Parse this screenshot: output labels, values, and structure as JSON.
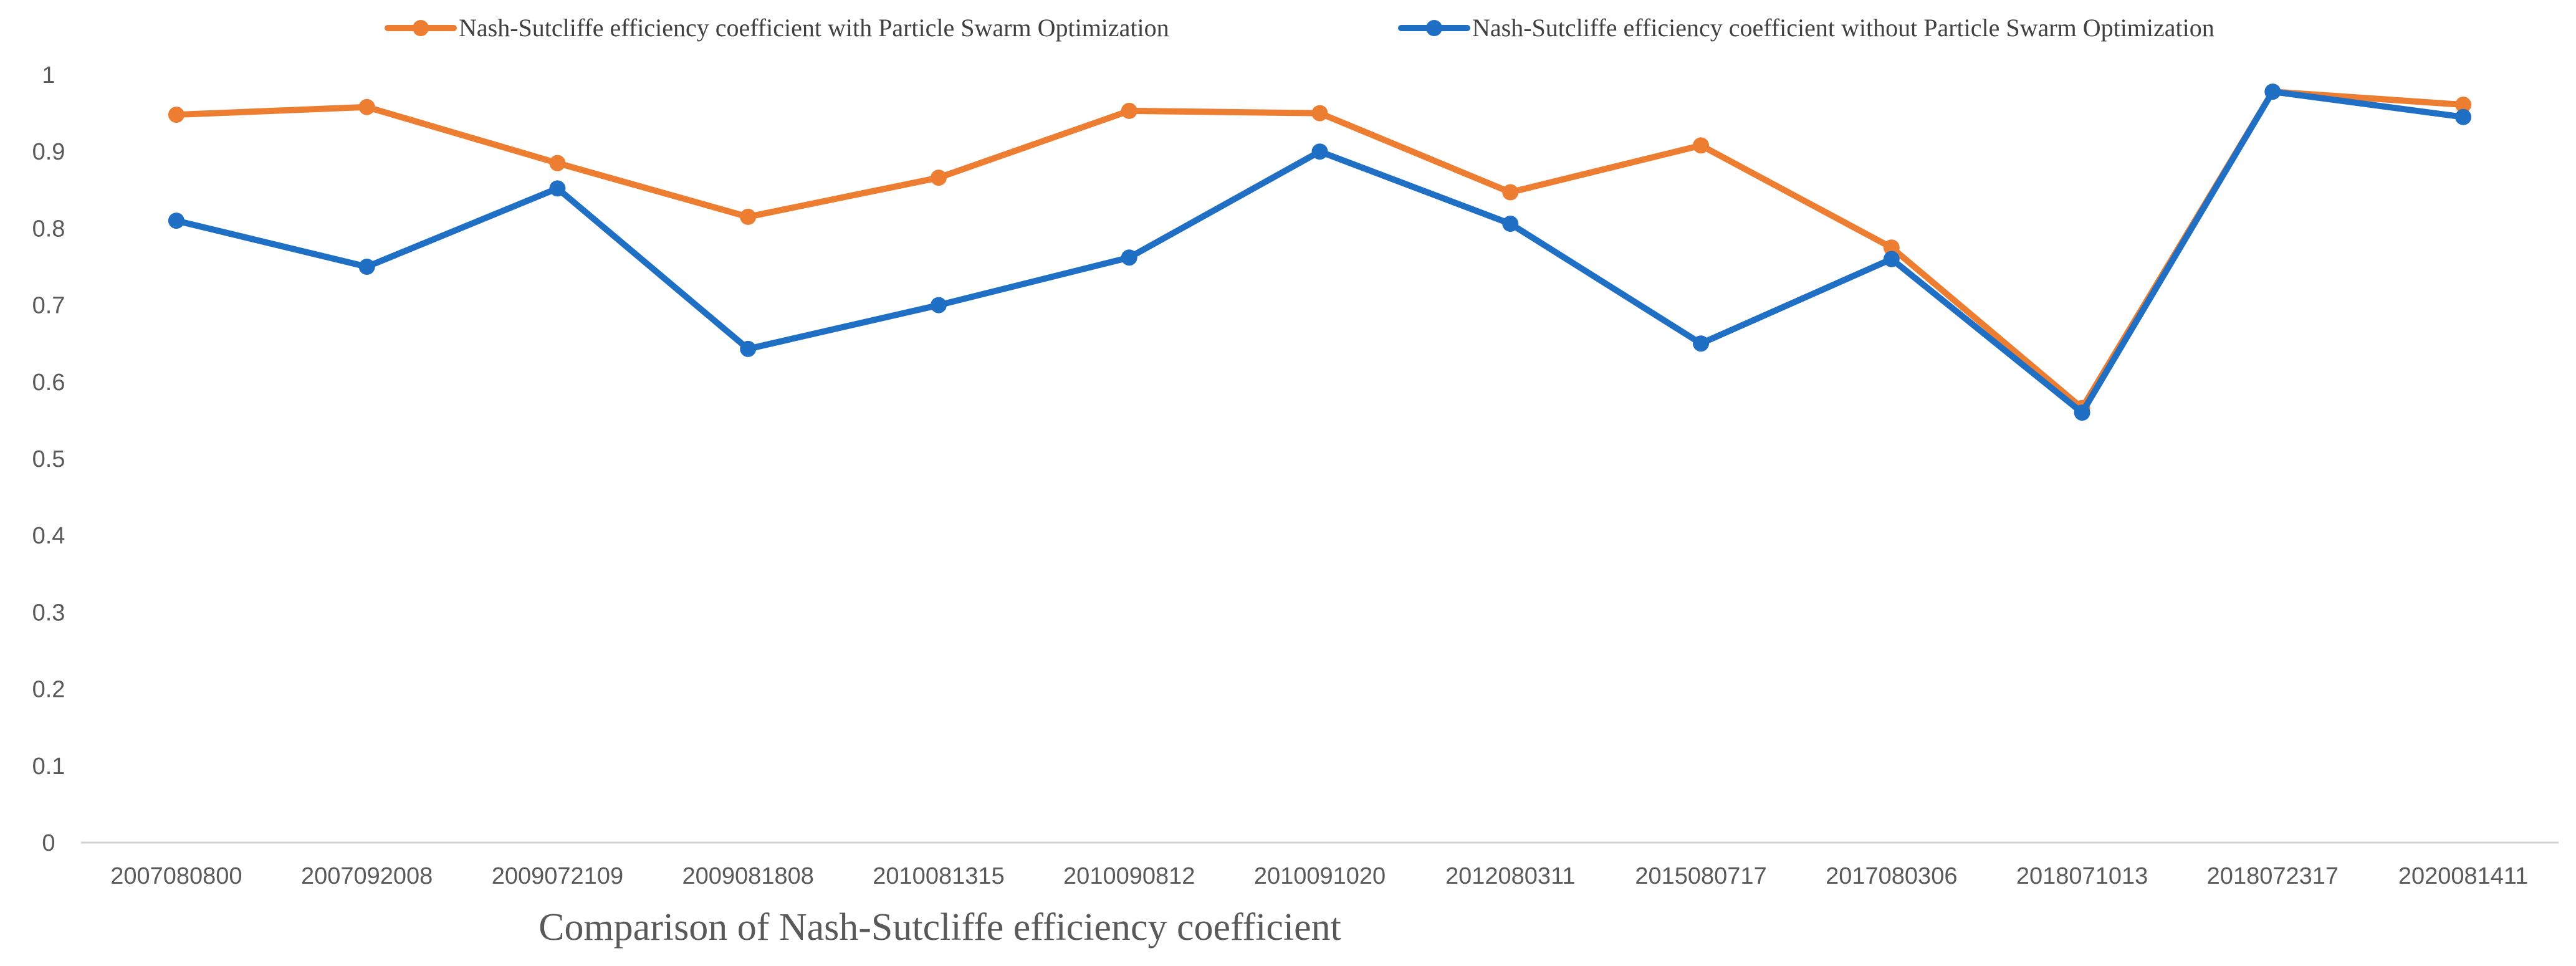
{
  "chart_data": {
    "type": "line",
    "title": "Comparison of Nash-Sutcliffe efficiency coefficient",
    "xlabel": "Comparison of Nash-Sutcliffe efficiency coefficient",
    "ylabel": "",
    "ylim": [
      0,
      1
    ],
    "yticks": [
      "0",
      "0.1",
      "0.2",
      "0.3",
      "0.4",
      "0.5",
      "0.6",
      "0.7",
      "0.8",
      "0.9",
      "1"
    ],
    "grid": false,
    "legend_position": "top-center",
    "categories": [
      "2007080800",
      "2007092008",
      "2009072109",
      "2009081808",
      "2010081315",
      "2010090812",
      "2010091020",
      "2012080311",
      "2015080717",
      "2017080306",
      "2018071013",
      "2018072317",
      "2020081411"
    ],
    "series": [
      {
        "name": "Nash-Sutcliffe efficiency coefficient with Particle Swarm Optimization",
        "color": "#ED7D31",
        "values": [
          0.948,
          0.958,
          0.885,
          0.815,
          0.866,
          0.953,
          0.95,
          0.847,
          0.908,
          0.775,
          0.566,
          0.978,
          0.961
        ]
      },
      {
        "name": "Nash-Sutcliffe efficiency coefficient without Particle Swarm Optimization",
        "color": "#1F6FC5",
        "values": [
          0.81,
          0.75,
          0.852,
          0.643,
          0.7,
          0.762,
          0.9,
          0.806,
          0.65,
          0.76,
          0.56,
          0.978,
          0.945
        ]
      }
    ]
  }
}
